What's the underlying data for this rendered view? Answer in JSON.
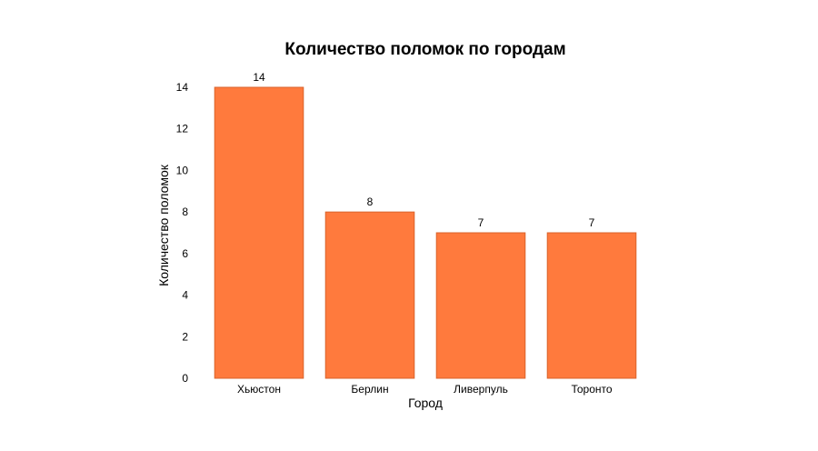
{
  "chart_data": {
    "type": "bar",
    "title": "Количество поломок по городам",
    "xlabel": "Город",
    "ylabel": "Количество поломок",
    "categories": [
      "Хьюстон",
      "Берлин",
      "Ливерпуль",
      "Торонто"
    ],
    "values": [
      14,
      8,
      7,
      7
    ],
    "data_labels": [
      "14",
      "8",
      "7",
      "7"
    ],
    "yticks": [
      0,
      2,
      4,
      6,
      8,
      10,
      12,
      14
    ],
    "ylim": [
      0,
      14
    ],
    "grid": false,
    "legend": "none",
    "colors": {
      "bar_fill": "#FF7A3D",
      "bar_stroke": "#D9632C"
    }
  }
}
